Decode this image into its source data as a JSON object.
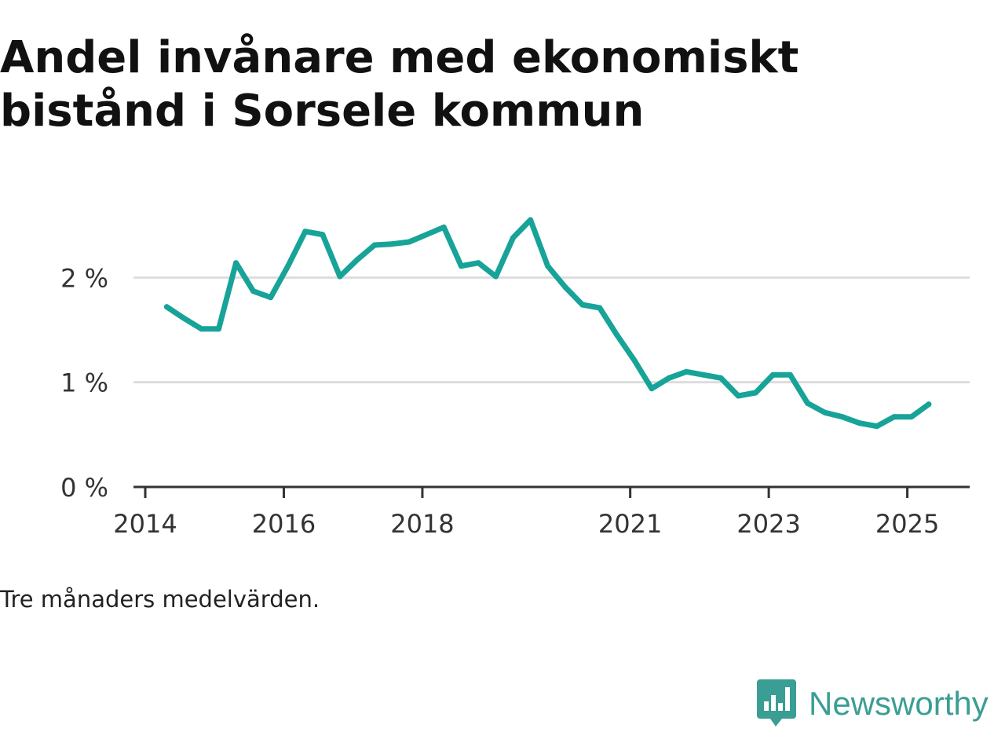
{
  "title": "Andel invånare med ekonomiskt bistånd i Sorsele kommun",
  "note": "Tre månaders medelvärden.",
  "brand": "Newsworthy",
  "colors": {
    "line": "#17a398",
    "brand": "#3a9e94",
    "grid": "#dddddd",
    "axis": "#333333"
  },
  "chart_data": {
    "type": "line",
    "title": "Andel invånare med ekonomiskt bistånd i Sorsele kommun",
    "xlabel": "",
    "ylabel": "",
    "x_ticks": [
      {
        "value": 2014.0,
        "label": "2014"
      },
      {
        "value": 2016.0,
        "label": "2016"
      },
      {
        "value": 2018.0,
        "label": "2018"
      },
      {
        "value": 2021.0,
        "label": "2021"
      },
      {
        "value": 2023.0,
        "label": "2023"
      },
      {
        "value": 2025.0,
        "label": "2025"
      }
    ],
    "y_ticks": [
      {
        "value": 0,
        "label": "0 %"
      },
      {
        "value": 1,
        "label": "1 %"
      },
      {
        "value": 2,
        "label": "2 %"
      }
    ],
    "xlim": [
      2013.83,
      2025.9
    ],
    "ylim": [
      0,
      2.7
    ],
    "grid": true,
    "legend": false,
    "series": [
      {
        "x": [
          2014.31,
          2014.56,
          2014.81,
          2015.06,
          2015.31,
          2015.56,
          2015.81,
          2016.06,
          2016.31,
          2016.56,
          2016.81,
          2017.06,
          2017.31,
          2017.56,
          2017.81,
          2018.06,
          2018.31,
          2018.56,
          2018.81,
          2019.06,
          2019.31,
          2019.56,
          2019.81,
          2020.06,
          2020.31,
          2020.56,
          2020.81,
          2021.06,
          2021.31,
          2021.56,
          2021.81,
          2022.06,
          2022.31,
          2022.56,
          2022.81,
          2023.06,
          2023.31,
          2023.56,
          2023.81,
          2024.06,
          2024.31,
          2024.56,
          2024.81,
          2025.06,
          2025.31
        ],
        "y": [
          1.72,
          1.61,
          1.51,
          1.51,
          2.14,
          1.87,
          1.81,
          2.11,
          2.44,
          2.41,
          2.01,
          2.17,
          2.31,
          2.32,
          2.34,
          2.41,
          2.48,
          2.11,
          2.14,
          2.01,
          2.38,
          2.55,
          2.11,
          1.91,
          1.74,
          1.71,
          1.45,
          1.21,
          0.94,
          1.04,
          1.1,
          1.07,
          1.04,
          0.87,
          0.9,
          1.07,
          1.07,
          0.8,
          0.71,
          0.67,
          0.61,
          0.58,
          0.67,
          0.67,
          0.79
        ]
      }
    ]
  }
}
